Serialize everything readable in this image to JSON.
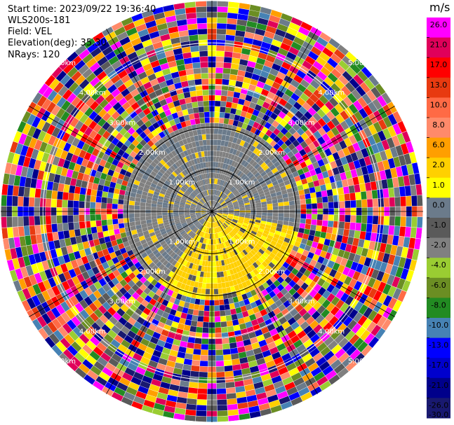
{
  "header": {
    "start_time": "Start time: 2023/09/22 19:36:40",
    "instrument": "WLS200s-181",
    "field": "Field: VEL",
    "elevation": "Elevation(deg): 35.30",
    "nrays": "NRays: 120"
  },
  "chart_data": {
    "type": "heatmap",
    "projection": "polar-ppi",
    "field": "VEL",
    "units": "m/s",
    "nrays": 120,
    "elevation_deg": 35.3,
    "range_rings_km": [
      1.0,
      2.0,
      3.0,
      4.0,
      5.0
    ],
    "max_range_km": 5.0,
    "range_ring_labels": [
      "1.00km",
      "2.00km",
      "3.00km",
      "4.00km",
      "5.00km"
    ],
    "clean_radius_km": 2.05,
    "spokes_deg": [
      0,
      30,
      60,
      90,
      120,
      150,
      180,
      210,
      240,
      270,
      300,
      330
    ],
    "pattern": {
      "inner_positive_sector_deg": [
        100,
        215
      ],
      "inner_value_positive_ms": 2.0,
      "inner_value_negative_ms": -2.0,
      "outer_zone": "noise"
    },
    "colorbar": {
      "unit_label": "m/s",
      "ticks": [
        "26.0",
        "21.0",
        "17.0",
        "13.0",
        "10.0",
        "8.0",
        "6.0",
        "2.0",
        "1.0",
        "0.0",
        "-1.0",
        "-2.0",
        "-4.0",
        "-6.0",
        "-8.0",
        "-10.0",
        "-13.0",
        "-17.0",
        "-21.0",
        "-26.0",
        "-30.0"
      ],
      "colors": [
        "#ff00ff",
        "#e0005a",
        "#ff0000",
        "#e83a10",
        "#ff6a45",
        "#ff8a6a",
        "#ff9f00",
        "#ffd000",
        "#ffff00",
        "#6b7b8b",
        "#5a5a5a",
        "#808080",
        "#9acd32",
        "#6b8e23",
        "#228b22",
        "#4682b4",
        "#0000ff",
        "#0000cd",
        "#00008b",
        "#191970"
      ]
    }
  }
}
